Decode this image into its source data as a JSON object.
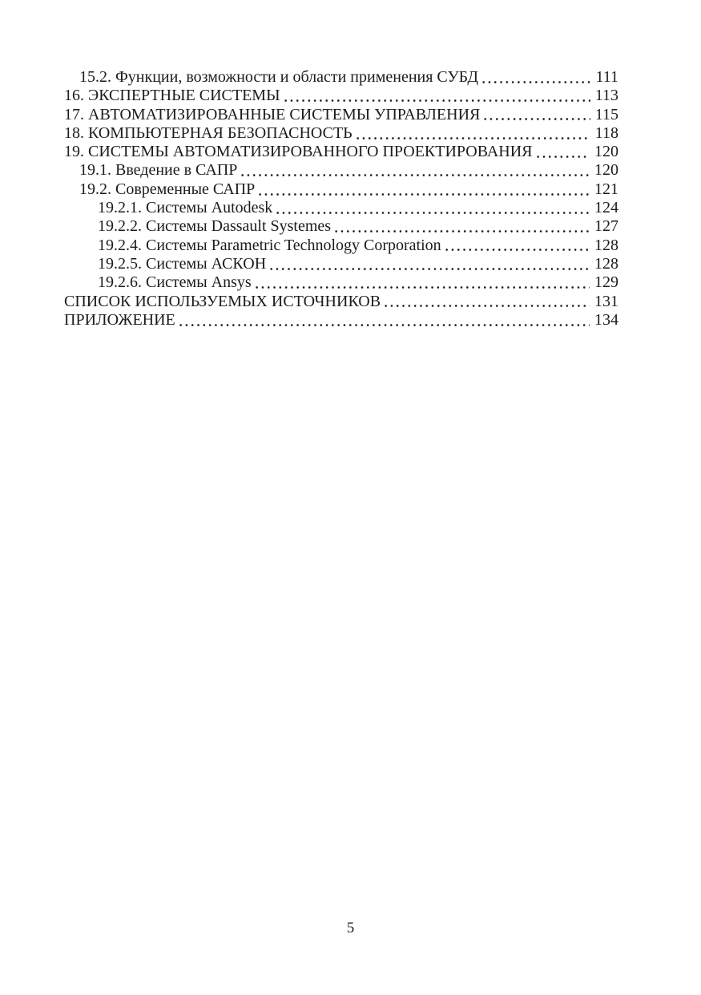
{
  "document": {
    "toc_entries": [
      {
        "level": 1,
        "title": "15.2. Функции, возможности и области применения СУБД",
        "page": "111"
      },
      {
        "level": 0,
        "title": "16. ЭКСПЕРТНЫЕ СИСТЕМЫ",
        "page": "113"
      },
      {
        "level": 0,
        "title": "17. АВТОМАТИЗИРОВАННЫЕ СИСТЕМЫ УПРАВЛЕНИЯ",
        "page": "115"
      },
      {
        "level": 0,
        "title": "18. КОМПЬЮТЕРНАЯ БЕЗОПАСНОСТЬ",
        "page": "118"
      },
      {
        "level": 0,
        "title": "19. СИСТЕМЫ АВТОМАТИЗИРОВАННОГО ПРОЕКТИРОВАНИЯ",
        "page": "120"
      },
      {
        "level": 1,
        "title": "19.1. Введение в САПР",
        "page": "120"
      },
      {
        "level": 1,
        "title": "19.2. Современные САПР",
        "page": "121"
      },
      {
        "level": 2,
        "title": "19.2.1. Системы Autodesk",
        "page": "124"
      },
      {
        "level": 2,
        "title": "19.2.2. Системы Dassault Systemes",
        "page": "127"
      },
      {
        "level": 2,
        "title": "19.2.4. Системы Parametric Technology Corporation",
        "page": "128"
      },
      {
        "level": 2,
        "title": "19.2.5. Системы АСКОН",
        "page": "128"
      },
      {
        "level": 2,
        "title": "19.2.6. Системы Ansys",
        "page": "129"
      },
      {
        "level": 0,
        "title": "СПИСОК ИСПОЛЬЗУЕМЫХ ИСТОЧНИКОВ",
        "page": "131"
      },
      {
        "level": 0,
        "title": "ПРИЛОЖЕНИЕ",
        "page": "134"
      }
    ],
    "page_number": "5"
  }
}
